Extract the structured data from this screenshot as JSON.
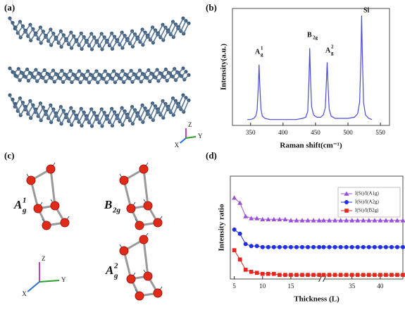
{
  "panel_labels": [
    "(a)",
    "(b)",
    "(c)",
    "(d)"
  ],
  "structure_a": {
    "axes": [
      "Z",
      "Y",
      "X"
    ]
  },
  "structure_c": {
    "modes": [
      {
        "base": "A",
        "sub": "g",
        "sup": "1"
      },
      {
        "base": "B",
        "sub": "2g"
      },
      {
        "base": "A",
        "sub": "g",
        "sup": "2"
      }
    ],
    "axes": [
      "Z",
      "Y",
      "X"
    ]
  },
  "chart_data": [
    {
      "type": "line",
      "xlabel": "Raman shift(cm⁻¹)",
      "ylabel": "Intensity(a.u.)",
      "x": [
        345,
        350,
        355,
        358,
        360,
        362,
        363,
        364,
        366,
        368,
        372,
        380,
        400,
        420,
        430,
        435,
        438,
        440,
        441,
        442,
        444,
        447,
        452,
        458,
        462,
        465,
        467,
        468,
        469,
        471,
        474,
        480,
        500,
        510,
        515,
        518,
        520,
        521,
        522,
        524,
        527,
        532,
        537
      ],
      "series": [
        {
          "color": "#4b4bd8",
          "values": [
            5,
            5,
            6,
            8,
            13,
            35,
            52,
            36,
            14,
            8,
            6,
            5,
            5,
            5,
            6,
            7,
            12,
            40,
            66,
            45,
            16,
            9,
            7,
            7,
            9,
            15,
            40,
            54,
            38,
            14,
            8,
            6,
            6,
            7,
            10,
            20,
            60,
            94,
            65,
            20,
            9,
            6,
            5
          ]
        }
      ],
      "annotations": [
        {
          "base": "A",
          "sub": "g",
          "sup": "1"
        },
        {
          "base": "B",
          "sub": "2g"
        },
        {
          "base": "A",
          "sub": "g",
          "sup": "2"
        },
        {
          "base": "Si"
        }
      ],
      "xlim": [
        322,
        564
      ],
      "ylim": [
        0,
        100
      ],
      "xticks": [
        350,
        400,
        450,
        500,
        550
      ]
    },
    {
      "type": "line",
      "xlabel": "Thickness (L)",
      "ylabel": "Intensity ratio",
      "x": [
        5,
        6,
        7,
        8,
        9,
        10,
        11,
        12,
        13,
        14,
        15,
        16,
        17,
        18,
        19,
        20,
        30,
        31,
        32,
        33,
        34,
        35,
        36,
        37,
        38,
        39,
        40,
        41,
        42,
        43,
        44
      ],
      "series": [
        {
          "name": "I(Si)/I(A1g)",
          "color": "#9b4fd6",
          "marker": "triangle",
          "values": [
            79,
            74,
            61,
            59,
            59,
            58,
            58,
            58,
            58,
            58,
            57,
            57,
            57,
            57,
            57,
            57,
            57,
            57,
            57,
            57,
            57,
            57,
            57,
            57,
            57,
            57,
            57,
            57,
            57,
            57,
            57
          ]
        },
        {
          "name": "I(Si)/I(A2g)",
          "color": "#1f2fe0",
          "marker": "circle",
          "values": [
            48,
            44,
            34,
            32,
            32,
            31,
            31,
            31,
            31,
            31,
            31,
            31,
            31,
            31,
            31,
            31,
            31,
            31,
            31,
            31,
            31,
            31,
            31,
            31,
            31,
            31,
            31,
            31,
            31,
            31,
            31
          ]
        },
        {
          "name": "I(Si)/I(B2g)",
          "color": "#e3271b",
          "marker": "square",
          "values": [
            28,
            19,
            9,
            7,
            6,
            5,
            5,
            5,
            4,
            4,
            4,
            4,
            4,
            4,
            4,
            4,
            4,
            4,
            4,
            4,
            4,
            4,
            4,
            4,
            4,
            4,
            4,
            4,
            4,
            4,
            4
          ]
        }
      ],
      "xlim": [
        4.3,
        44
      ],
      "xbreak": [
        20.3,
        30
      ],
      "ylim": [
        0,
        100
      ],
      "xticks": [
        5,
        10,
        15,
        35,
        40
      ],
      "legend": "upper right"
    }
  ]
}
